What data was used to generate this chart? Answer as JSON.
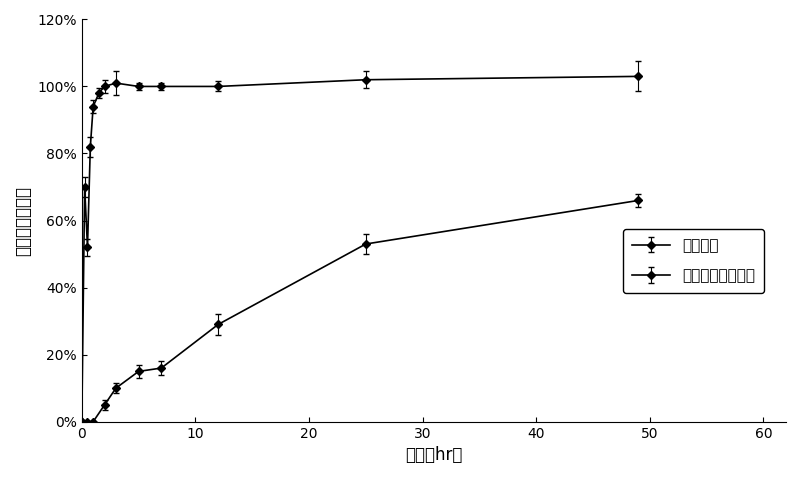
{
  "series1_label": "市售制剑",
  "series2_label": "磷脂复合物注射剑",
  "series1_x": [
    0,
    0.25,
    0.5,
    0.75,
    1.0,
    1.5,
    2.0,
    3.0,
    5.0,
    7.0,
    12.0,
    25.0,
    49.0
  ],
  "series1_y": [
    0.0,
    70.0,
    52.0,
    82.0,
    94.0,
    98.0,
    100.0,
    101.0,
    100.0,
    100.0,
    100.0,
    102.0,
    103.0
  ],
  "series1_yerr": [
    0.0,
    3.0,
    2.5,
    3.0,
    2.0,
    1.5,
    2.0,
    3.5,
    1.0,
    1.0,
    1.5,
    2.5,
    4.5
  ],
  "series2_x": [
    0,
    0.5,
    1.0,
    2.0,
    3.0,
    5.0,
    7.0,
    12.0,
    25.0,
    49.0
  ],
  "series2_y": [
    0.0,
    0.0,
    0.0,
    5.0,
    10.0,
    15.0,
    16.0,
    29.0,
    53.0,
    66.0
  ],
  "series2_yerr": [
    0.0,
    0.0,
    0.0,
    1.5,
    1.5,
    2.0,
    2.0,
    3.0,
    3.0,
    2.0
  ],
  "xlabel": "时间（hr）",
  "ylabel": "累积释放百分率",
  "xlim": [
    0,
    62
  ],
  "ylim": [
    0.0,
    1.2
  ],
  "yticks": [
    0.0,
    0.2,
    0.4,
    0.6,
    0.8,
    1.0,
    1.2
  ],
  "xticks": [
    0,
    10,
    20,
    30,
    40,
    50,
    60
  ],
  "color": "#000000",
  "marker": "D",
  "linewidth": 1.2,
  "markersize": 4,
  "capsize": 2,
  "fontsize_label": 12,
  "fontsize_tick": 10,
  "fontsize_legend": 11,
  "background_color": "#ffffff"
}
